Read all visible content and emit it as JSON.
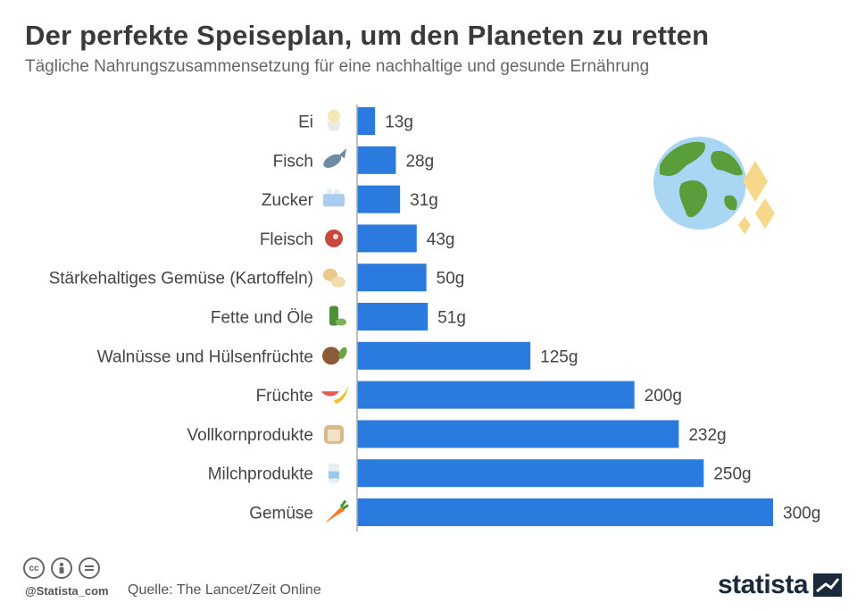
{
  "header": {
    "title": "Der perfekte Speiseplan, um den Planeten zu retten",
    "subtitle": "Tägliche Nahrungszusammensetzung für eine nachhaltige und gesunde Ernährung"
  },
  "chart_data": {
    "type": "bar",
    "orientation": "horizontal",
    "categories": [
      "Ei",
      "Fisch",
      "Zucker",
      "Fleisch",
      "Stärkehaltiges Gemüse (Kartoffeln)",
      "Fette und Öle",
      "Walnüsse und Hülsenfrüchte",
      "Früchte",
      "Vollkornprodukte",
      "Milchprodukte",
      "Gemüse"
    ],
    "values": [
      13,
      28,
      31,
      43,
      50,
      51,
      125,
      200,
      232,
      250,
      300
    ],
    "value_labels": [
      "13g",
      "28g",
      "31g",
      "43g",
      "50g",
      "51g",
      "125g",
      "200g",
      "232g",
      "250g",
      "300g"
    ],
    "icons": [
      "egg-icon",
      "fish-icon",
      "sugar-icon",
      "meat-icon",
      "potato-icon",
      "oil-icon",
      "nut-icon",
      "fruit-icon",
      "bread-icon",
      "milk-icon",
      "carrot-icon"
    ],
    "xlim": [
      0,
      300
    ],
    "bar_color": "#2b7bde",
    "grid": false
  },
  "footer": {
    "handle": "@Statista_com",
    "source": "Quelle: The Lancet/Zeit Online",
    "license_icons": [
      "cc-icon",
      "person-icon",
      "equals-icon"
    ],
    "logo_text": "statista"
  }
}
